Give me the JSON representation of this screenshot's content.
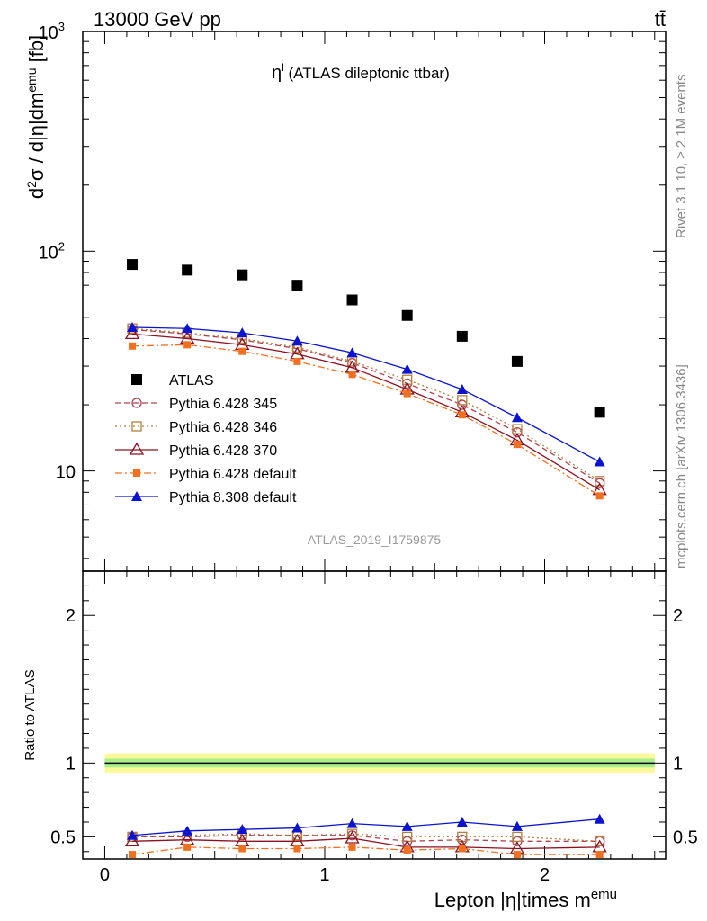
{
  "header": {
    "energy_label": "13000 GeV pp",
    "process_label": "tt̄"
  },
  "side_labels": {
    "rivet": "Rivet 3.1.10, ≥ 2.1M events",
    "source": "mcplots.cern.ch [arXiv:1306.3436]"
  },
  "chart_data": [
    {
      "type": "scatter",
      "panel": "main",
      "title": "η (ATLAS dileptonic ttbar)",
      "title_symbol": "η",
      "title_sup": "l",
      "title_rest": " (ATLAS dileptonic ttbar)",
      "ylabel": "d²σ / d|η|dm^emu [fb]",
      "yscale": "log",
      "ylim": [
        3.5,
        1000
      ],
      "xlim": [
        -0.1,
        2.55
      ],
      "y_tick_labels": [
        {
          "value": 10,
          "label": "10"
        },
        {
          "value": 100,
          "label": "10",
          "sup": "2"
        },
        {
          "value": 1000,
          "label": "10",
          "sup": "3"
        }
      ],
      "watermark": "ATLAS_2019_I1759875",
      "legend_position": "middle-left",
      "x": [
        0.125,
        0.375,
        0.625,
        0.875,
        1.125,
        1.375,
        1.625,
        1.875,
        2.25
      ],
      "series": [
        {
          "name": "ATLAS",
          "color": "#000000",
          "marker": "square-filled",
          "line": "none",
          "values": [
            87,
            82,
            78,
            70,
            60,
            51,
            41,
            31.5,
            18.5
          ]
        },
        {
          "name": "Pythia 6.428 345",
          "color": "#b04050",
          "marker": "circle-open",
          "line": "dashed",
          "values": [
            44,
            42,
            39.5,
            36,
            31,
            25,
            20,
            15,
            8.8
          ]
        },
        {
          "name": "Pythia 6.428 346",
          "color": "#b08040",
          "marker": "square-open",
          "line": "dotted",
          "values": [
            44.5,
            42.5,
            40,
            36.5,
            31.5,
            26,
            21,
            15.5,
            9
          ]
        },
        {
          "name": "Pythia 6.428 370",
          "color": "#8b1020",
          "marker": "triangle-open",
          "line": "solid",
          "values": [
            42,
            40,
            37.5,
            34,
            29.5,
            23.5,
            18.5,
            13.8,
            8.2
          ]
        },
        {
          "name": "Pythia 6.428 default",
          "color": "#f07020",
          "marker": "square-small",
          "line": "dashdot",
          "values": [
            37,
            37.5,
            35,
            31.5,
            27.5,
            22.5,
            18,
            13.2,
            7.7
          ]
        },
        {
          "name": "Pythia 8.308 default",
          "color": "#0a14d0",
          "marker": "triangle-filled",
          "line": "solid",
          "values": [
            45,
            44.5,
            42.5,
            39,
            34.5,
            29,
            23.5,
            17.5,
            11
          ]
        }
      ]
    },
    {
      "type": "line",
      "panel": "ratio",
      "ylabel": "Ratio to ATLAS",
      "xlabel": "Lepton |η|times m",
      "xlabel_sup": "emu",
      "ylim": [
        0.35,
        2.3
      ],
      "xlim": [
        -0.1,
        2.55
      ],
      "x_tick_labels": [
        "0",
        "1",
        "2"
      ],
      "y_tick_labels": [
        "0.5",
        "1",
        "2"
      ],
      "band_inner": [
        0.97,
        1.03
      ],
      "band_outer": [
        0.935,
        1.065
      ],
      "x": [
        0.125,
        0.375,
        0.625,
        0.875,
        1.125,
        1.375,
        1.625,
        1.875,
        2.25
      ],
      "series": [
        {
          "name": "Pythia 6.428 345",
          "values": [
            0.5,
            0.5,
            0.51,
            0.51,
            0.51,
            0.47,
            0.48,
            0.47,
            0.47
          ]
        },
        {
          "name": "Pythia 6.428 346",
          "values": [
            0.5,
            0.51,
            0.52,
            0.51,
            0.52,
            0.5,
            0.5,
            0.5,
            0.47
          ]
        },
        {
          "name": "Pythia 6.428 370",
          "values": [
            0.47,
            0.48,
            0.47,
            0.47,
            0.49,
            0.43,
            0.43,
            0.42,
            0.43
          ]
        },
        {
          "name": "Pythia 6.428 default",
          "values": [
            0.38,
            0.43,
            0.42,
            0.42,
            0.43,
            0.41,
            0.42,
            0.38,
            0.38
          ]
        },
        {
          "name": "Pythia 8.308 default",
          "values": [
            0.51,
            0.54,
            0.55,
            0.56,
            0.59,
            0.57,
            0.6,
            0.57,
            0.62
          ]
        }
      ]
    }
  ]
}
